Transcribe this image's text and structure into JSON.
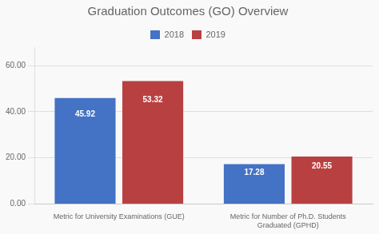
{
  "chart_data": {
    "type": "bar",
    "title": "Graduation Outcomes (GO) Overview",
    "categories": [
      "Metric for University Examinations (GUE)",
      "Metric for Number of Ph.D. Students\nGraduated (GPHD)"
    ],
    "series": [
      {
        "name": "2018",
        "color": "#4472C4",
        "values": [
          45.92,
          17.28
        ]
      },
      {
        "name": "2019",
        "color": "#B94040",
        "values": [
          53.32,
          20.55
        ]
      }
    ],
    "ylim": [
      0,
      68
    ],
    "yticks": [
      {
        "value": 0,
        "label": "0.00"
      },
      {
        "value": 20,
        "label": "20.00"
      },
      {
        "value": 40,
        "label": "40.00"
      },
      {
        "value": 60,
        "label": "60.00"
      }
    ],
    "grid": true,
    "legend": "top",
    "data_labels": true
  }
}
